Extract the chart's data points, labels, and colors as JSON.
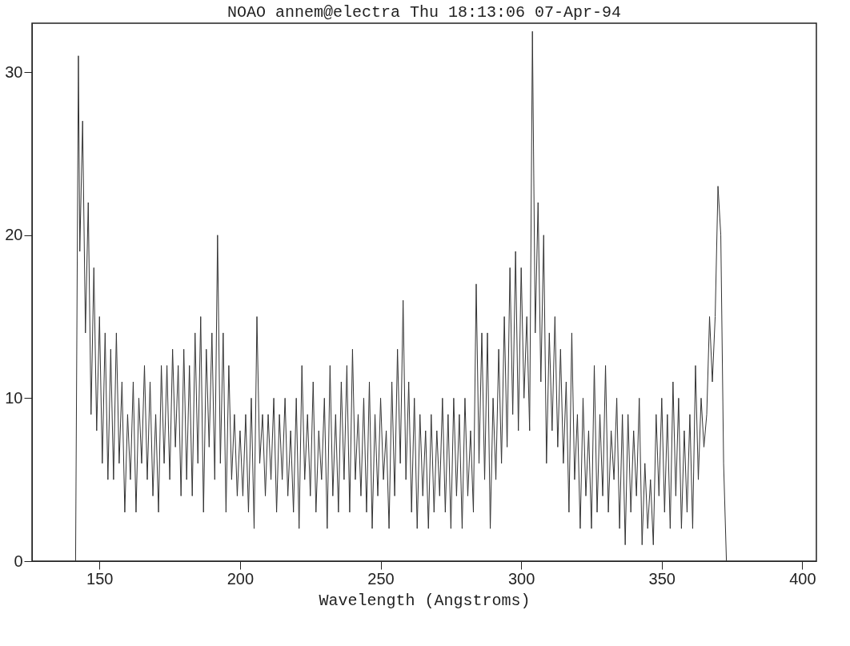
{
  "chart_data": {
    "type": "line",
    "title": "NOAO annem@electra Thu 18:13:06 07-Apr-94",
    "xlabel": "Wavelength (Angstroms)",
    "xlim": [
      126,
      405
    ],
    "xticks": [
      150,
      200,
      250,
      300,
      350,
      400
    ],
    "ylim": [
      0,
      33
    ],
    "yticks": [
      0,
      10,
      20,
      30
    ],
    "grid": false,
    "marker": "none",
    "line_style": "solid",
    "series": [
      {
        "color": "#333333",
        "x": [
          141.5,
          142.5,
          143,
          144,
          145,
          146,
          147,
          148,
          149,
          150,
          151,
          152,
          153,
          154,
          155,
          156,
          157,
          158,
          159,
          160,
          161,
          162,
          163,
          164,
          165,
          166,
          167,
          168,
          169,
          170,
          171,
          172,
          173,
          174,
          175,
          176,
          177,
          178,
          179,
          180,
          181,
          182,
          183,
          184,
          185,
          186,
          187,
          188,
          189,
          190,
          191,
          192,
          193,
          194,
          195,
          196,
          197,
          198,
          199,
          200,
          201,
          202,
          203,
          204,
          205,
          206,
          207,
          208,
          209,
          210,
          211,
          212,
          213,
          214,
          215,
          216,
          217,
          218,
          219,
          220,
          221,
          222,
          223,
          224,
          225,
          226,
          227,
          228,
          229,
          230,
          231,
          232,
          233,
          234,
          235,
          236,
          237,
          238,
          239,
          240,
          241,
          242,
          243,
          244,
          245,
          246,
          247,
          248,
          249,
          250,
          251,
          252,
          253,
          254,
          255,
          256,
          257,
          258,
          259,
          260,
          261,
          262,
          263,
          264,
          265,
          266,
          267,
          268,
          269,
          270,
          271,
          272,
          273,
          274,
          275,
          276,
          277,
          278,
          279,
          280,
          281,
          282,
          283,
          284,
          285,
          286,
          287,
          288,
          289,
          290,
          291,
          292,
          293,
          294,
          295,
          296,
          297,
          298,
          299,
          300,
          301,
          302,
          303,
          304,
          305,
          306,
          307,
          308,
          309,
          310,
          311,
          312,
          313,
          314,
          315,
          316,
          317,
          318,
          319,
          320,
          321,
          322,
          323,
          324,
          325,
          326,
          327,
          328,
          329,
          330,
          331,
          332,
          333,
          334,
          335,
          336,
          337,
          338,
          339,
          340,
          341,
          342,
          343,
          344,
          345,
          346,
          347,
          348,
          349,
          350,
          351,
          352,
          353,
          354,
          355,
          356,
          357,
          358,
          359,
          360,
          361,
          362,
          363,
          364,
          365,
          366,
          367,
          368,
          369,
          370,
          371,
          372,
          373
        ],
        "values": [
          0,
          31,
          19,
          27,
          14,
          22,
          9,
          18,
          8,
          15,
          6,
          14,
          5,
          13,
          5,
          14,
          6,
          11,
          3,
          9,
          5,
          11,
          3,
          10,
          6,
          12,
          5,
          11,
          4,
          9,
          3,
          12,
          6,
          12,
          5,
          13,
          7,
          12,
          4,
          13,
          5,
          12,
          4,
          14,
          6,
          15,
          3,
          13,
          7,
          14,
          5,
          20,
          6,
          14,
          3,
          12,
          5,
          9,
          4,
          8,
          4,
          9,
          3,
          10,
          2,
          15,
          6,
          9,
          4,
          9,
          5,
          10,
          3,
          9,
          5,
          10,
          4,
          8,
          3,
          10,
          2,
          12,
          5,
          9,
          4,
          11,
          3,
          8,
          5,
          10,
          2,
          12,
          4,
          9,
          3,
          11,
          5,
          12,
          3,
          13,
          5,
          9,
          4,
          10,
          3,
          11,
          2,
          9,
          4,
          10,
          5,
          8,
          2,
          11,
          4,
          13,
          6,
          16,
          5,
          11,
          3,
          10,
          2,
          9,
          4,
          8,
          2,
          9,
          3,
          8,
          4,
          10,
          3,
          9,
          2,
          10,
          4,
          9,
          2,
          10,
          4,
          8,
          3,
          17,
          6,
          14,
          5,
          14,
          2,
          10,
          5,
          13,
          6,
          15,
          7,
          18,
          9,
          19,
          8,
          18,
          10,
          15,
          8,
          32.5,
          14,
          22,
          11,
          20,
          6,
          14,
          8,
          15,
          7,
          13,
          6,
          11,
          3,
          14,
          5,
          9,
          2,
          10,
          4,
          8,
          2,
          12,
          3,
          9,
          4,
          12,
          3,
          8,
          5,
          10,
          2,
          9,
          1,
          9,
          3,
          8,
          4,
          10,
          1,
          6,
          2,
          5,
          1,
          9,
          4,
          10,
          3,
          9,
          2,
          11,
          4,
          10,
          2,
          8,
          3,
          9,
          2,
          12,
          5,
          10,
          7,
          9,
          15,
          11,
          15,
          23,
          20,
          6,
          0
        ]
      }
    ]
  }
}
